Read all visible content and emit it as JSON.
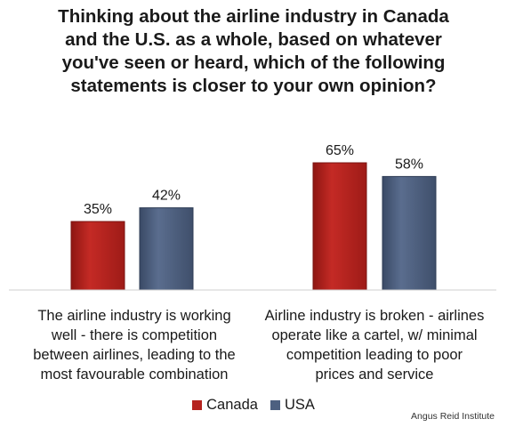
{
  "chart_data": {
    "type": "bar",
    "title": "Thinking about the airline industry in Canada and the U.S. as a whole, based on whatever you've seen or heard, which of the following statements is closer to your own opinion?",
    "categories": [
      "The airline industry is working well - there is competition between airlines, leading to the most favourable combination",
      "Airline industry is broken - airlines operate like a cartel, w/ minimal competition leading to poor prices and service"
    ],
    "series": [
      {
        "name": "Canada",
        "values": [
          35,
          65
        ],
        "labels": [
          "35%",
          "65%"
        ],
        "color": "#b5231f"
      },
      {
        "name": "USA",
        "values": [
          42,
          58
        ],
        "labels": [
          "42%",
          "58%"
        ],
        "color": "#4d6080"
      }
    ],
    "ylim": [
      0,
      100
    ],
    "legend_position": "bottom",
    "grid": false
  },
  "title_lines": [
    "Thinking about the airline industry in Canada",
    "and the U.S. as a whole, based on whatever",
    "you've seen or heard, which of the following",
    "statements is closer to your own opinion?"
  ],
  "category_lines": [
    [
      "The airline industry is working",
      "well - there is competition",
      "between airlines, leading to the",
      "most favourable combination"
    ],
    [
      "Airline industry is broken - airlines",
      "operate like a cartel, w/ minimal",
      "competition leading to poor",
      "prices and service"
    ]
  ],
  "source": "Angus Reid Institute"
}
